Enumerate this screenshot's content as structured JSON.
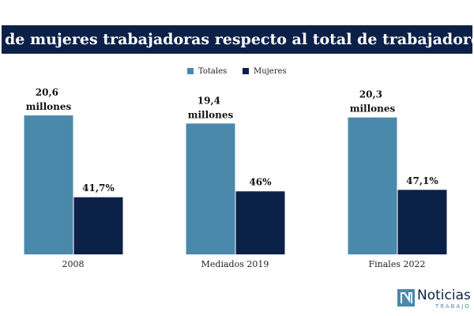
{
  "chart_data": {
    "type": "bar",
    "title": "% de mujeres trabajadoras respecto al total de trabajadores",
    "categories": [
      "2008",
      "Mediados 2019",
      "Finales 2022"
    ],
    "series": [
      {
        "name": "Totales",
        "color": "#4a89ab",
        "values": [
          20.6,
          19.4,
          20.3
        ],
        "value_labels": [
          "20,6 millones",
          "19,4 millones",
          "20,3 millones"
        ]
      },
      {
        "name": "Mujeres",
        "color": "#0c2148",
        "axis": "y2",
        "values": [
          41.7,
          46,
          47.1
        ],
        "value_labels": [
          "41,7%",
          "46%",
          "47,1%"
        ]
      }
    ],
    "ylim": [
      0,
      26
    ],
    "y2lim": [
      0,
      128
    ],
    "legend": "top"
  },
  "logo": {
    "name": "Noticias",
    "tagline": "TRABAJO"
  }
}
